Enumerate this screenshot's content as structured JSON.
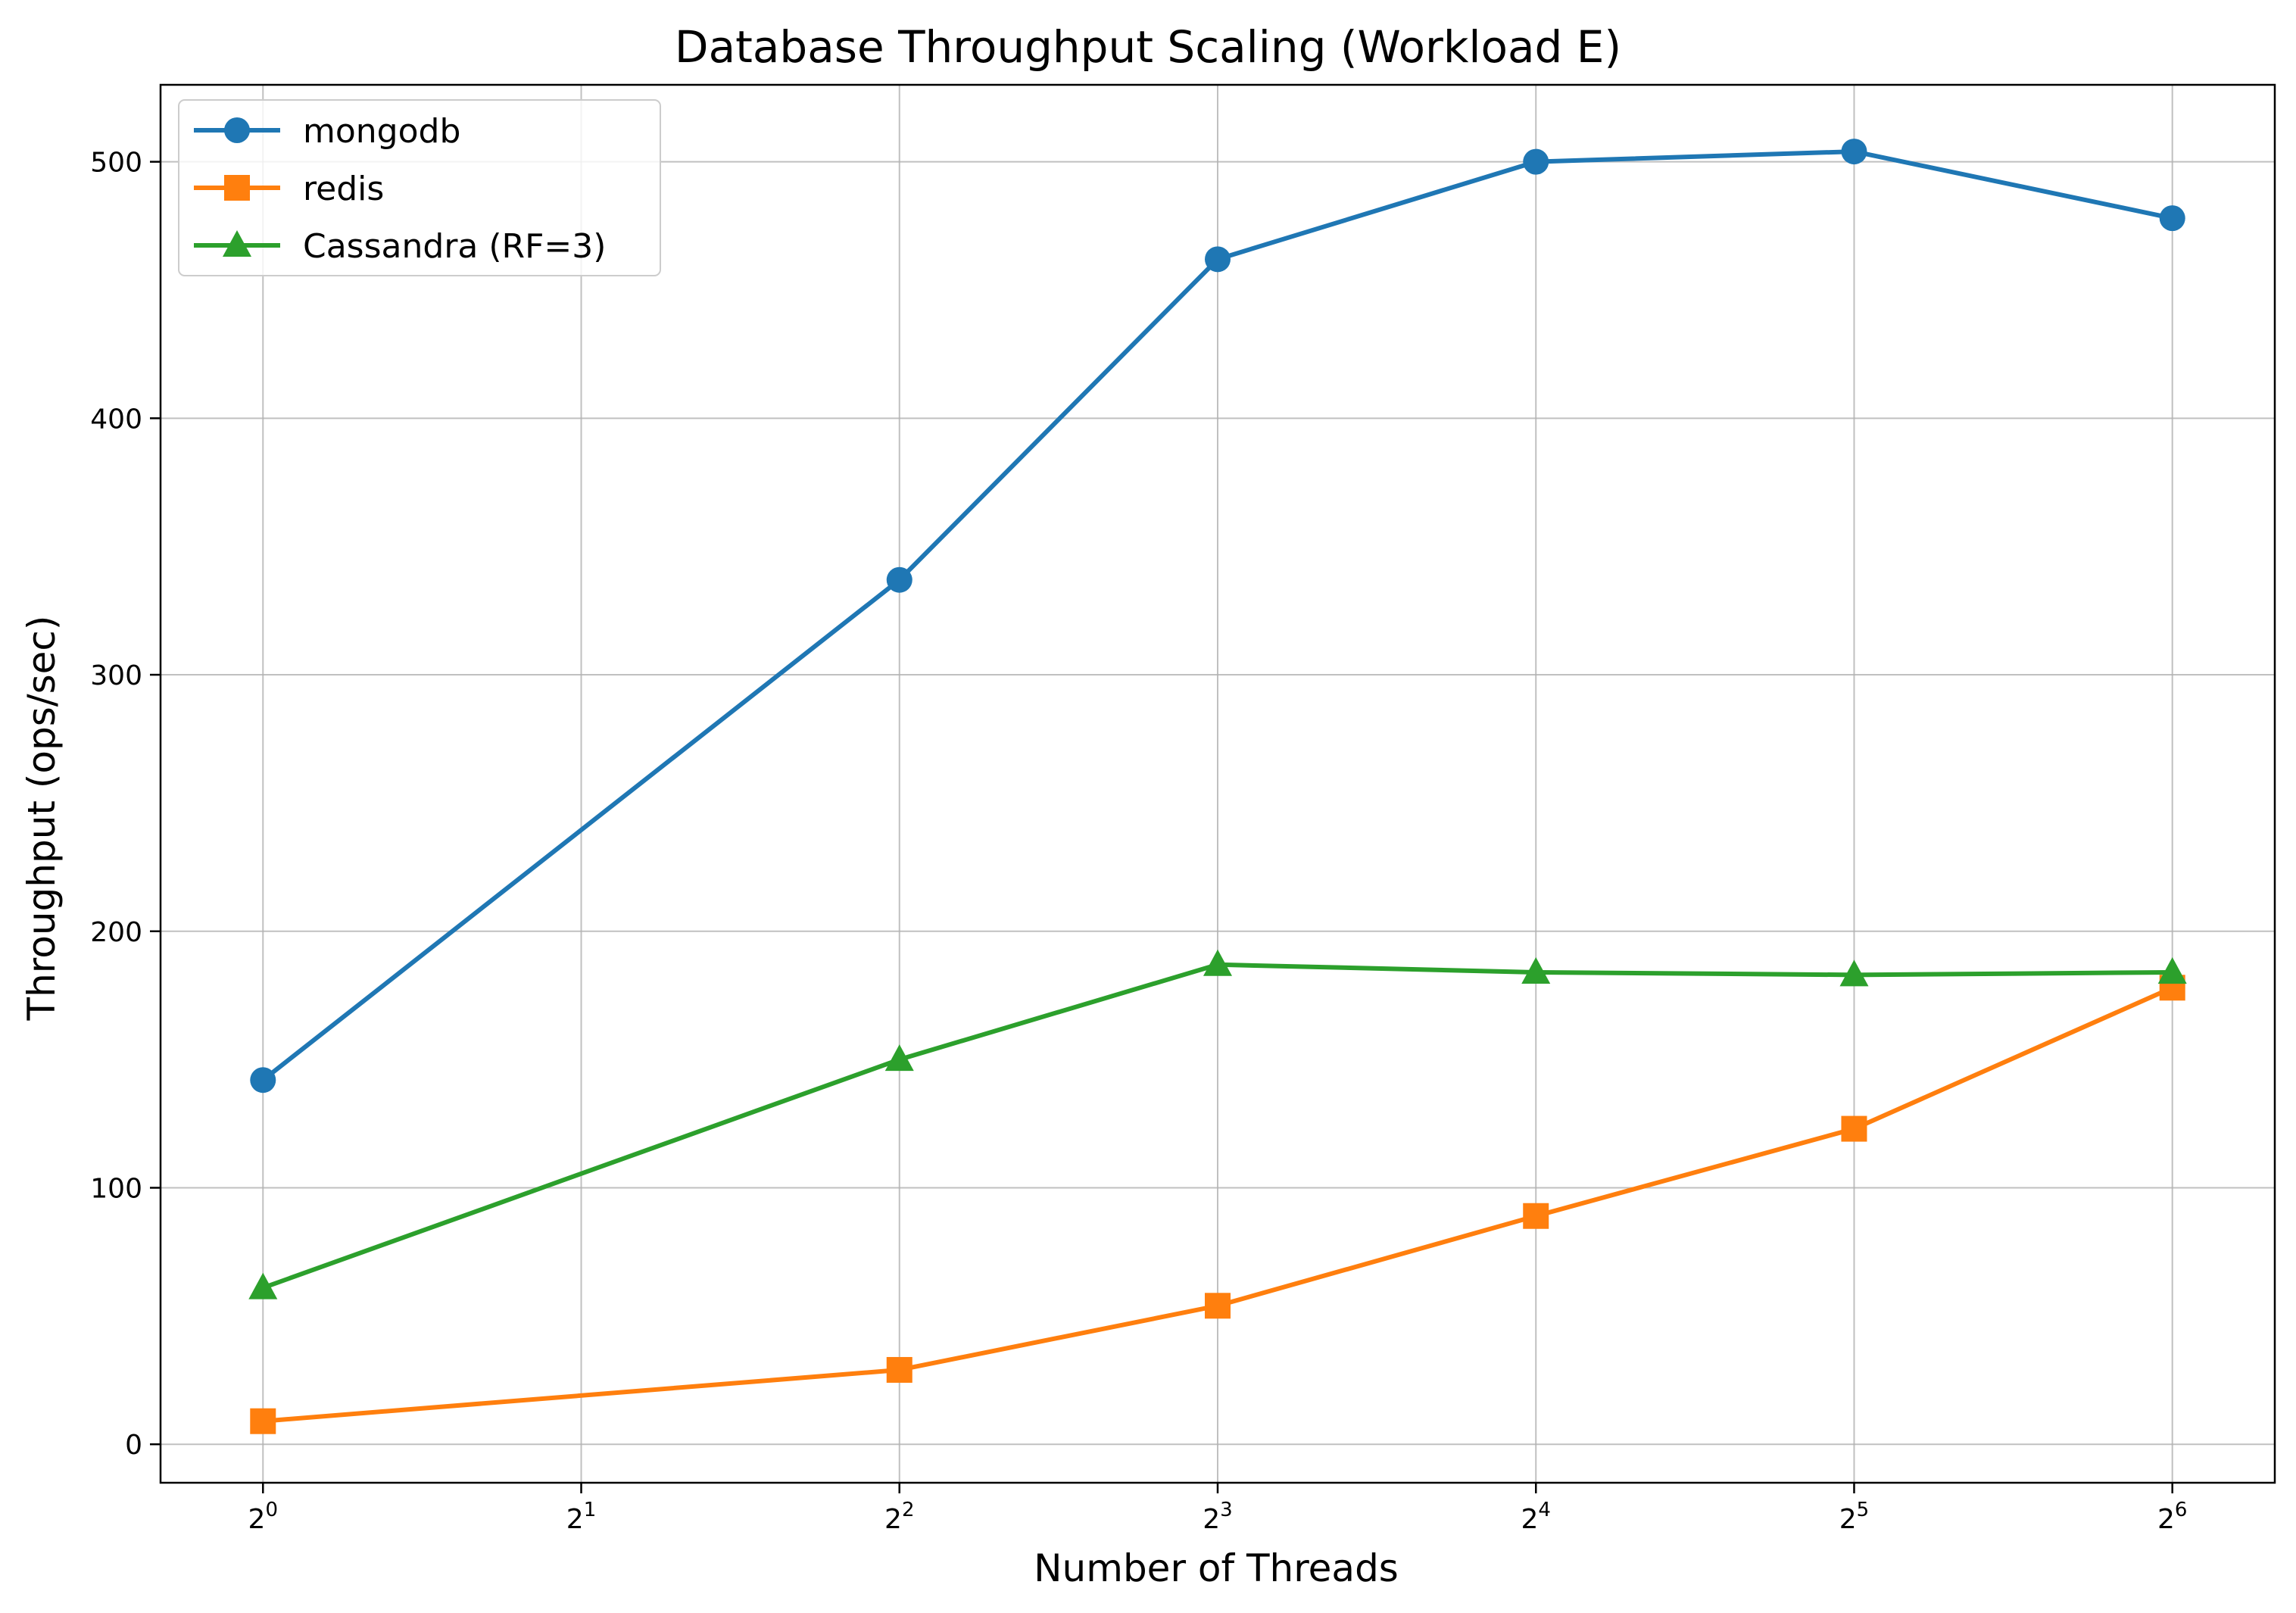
{
  "chart_data": {
    "type": "line",
    "title": "Database Throughput Scaling (Workload E)",
    "xlabel": "Number of Threads",
    "ylabel": "Throughput (ops/sec)",
    "x_scale": "log2",
    "x": [
      1,
      4,
      8,
      16,
      32,
      64
    ],
    "xlim": [
      0.8,
      80
    ],
    "ylim": [
      -15,
      530
    ],
    "x_ticks": [
      {
        "base": "2",
        "exp": "0",
        "value": 1
      },
      {
        "base": "2",
        "exp": "1",
        "value": 2
      },
      {
        "base": "2",
        "exp": "2",
        "value": 4
      },
      {
        "base": "2",
        "exp": "3",
        "value": 8
      },
      {
        "base": "2",
        "exp": "4",
        "value": 16
      },
      {
        "base": "2",
        "exp": "5",
        "value": 32
      },
      {
        "base": "2",
        "exp": "6",
        "value": 64
      }
    ],
    "y_ticks": [
      0,
      100,
      200,
      300,
      400,
      500
    ],
    "grid": true,
    "legend_position": "top-left",
    "series": [
      {
        "name": "mongodb",
        "color": "#1f77b4",
        "marker": "circle",
        "values": [
          142,
          337,
          462,
          500,
          504,
          478
        ]
      },
      {
        "name": "redis",
        "color": "#ff7f0e",
        "marker": "square",
        "values": [
          9,
          29,
          54,
          89,
          123,
          178
        ]
      },
      {
        "name": "Cassandra (RF=3)",
        "color": "#2ca02c",
        "marker": "triangle",
        "values": [
          61,
          150,
          187,
          184,
          183,
          184
        ]
      }
    ]
  }
}
